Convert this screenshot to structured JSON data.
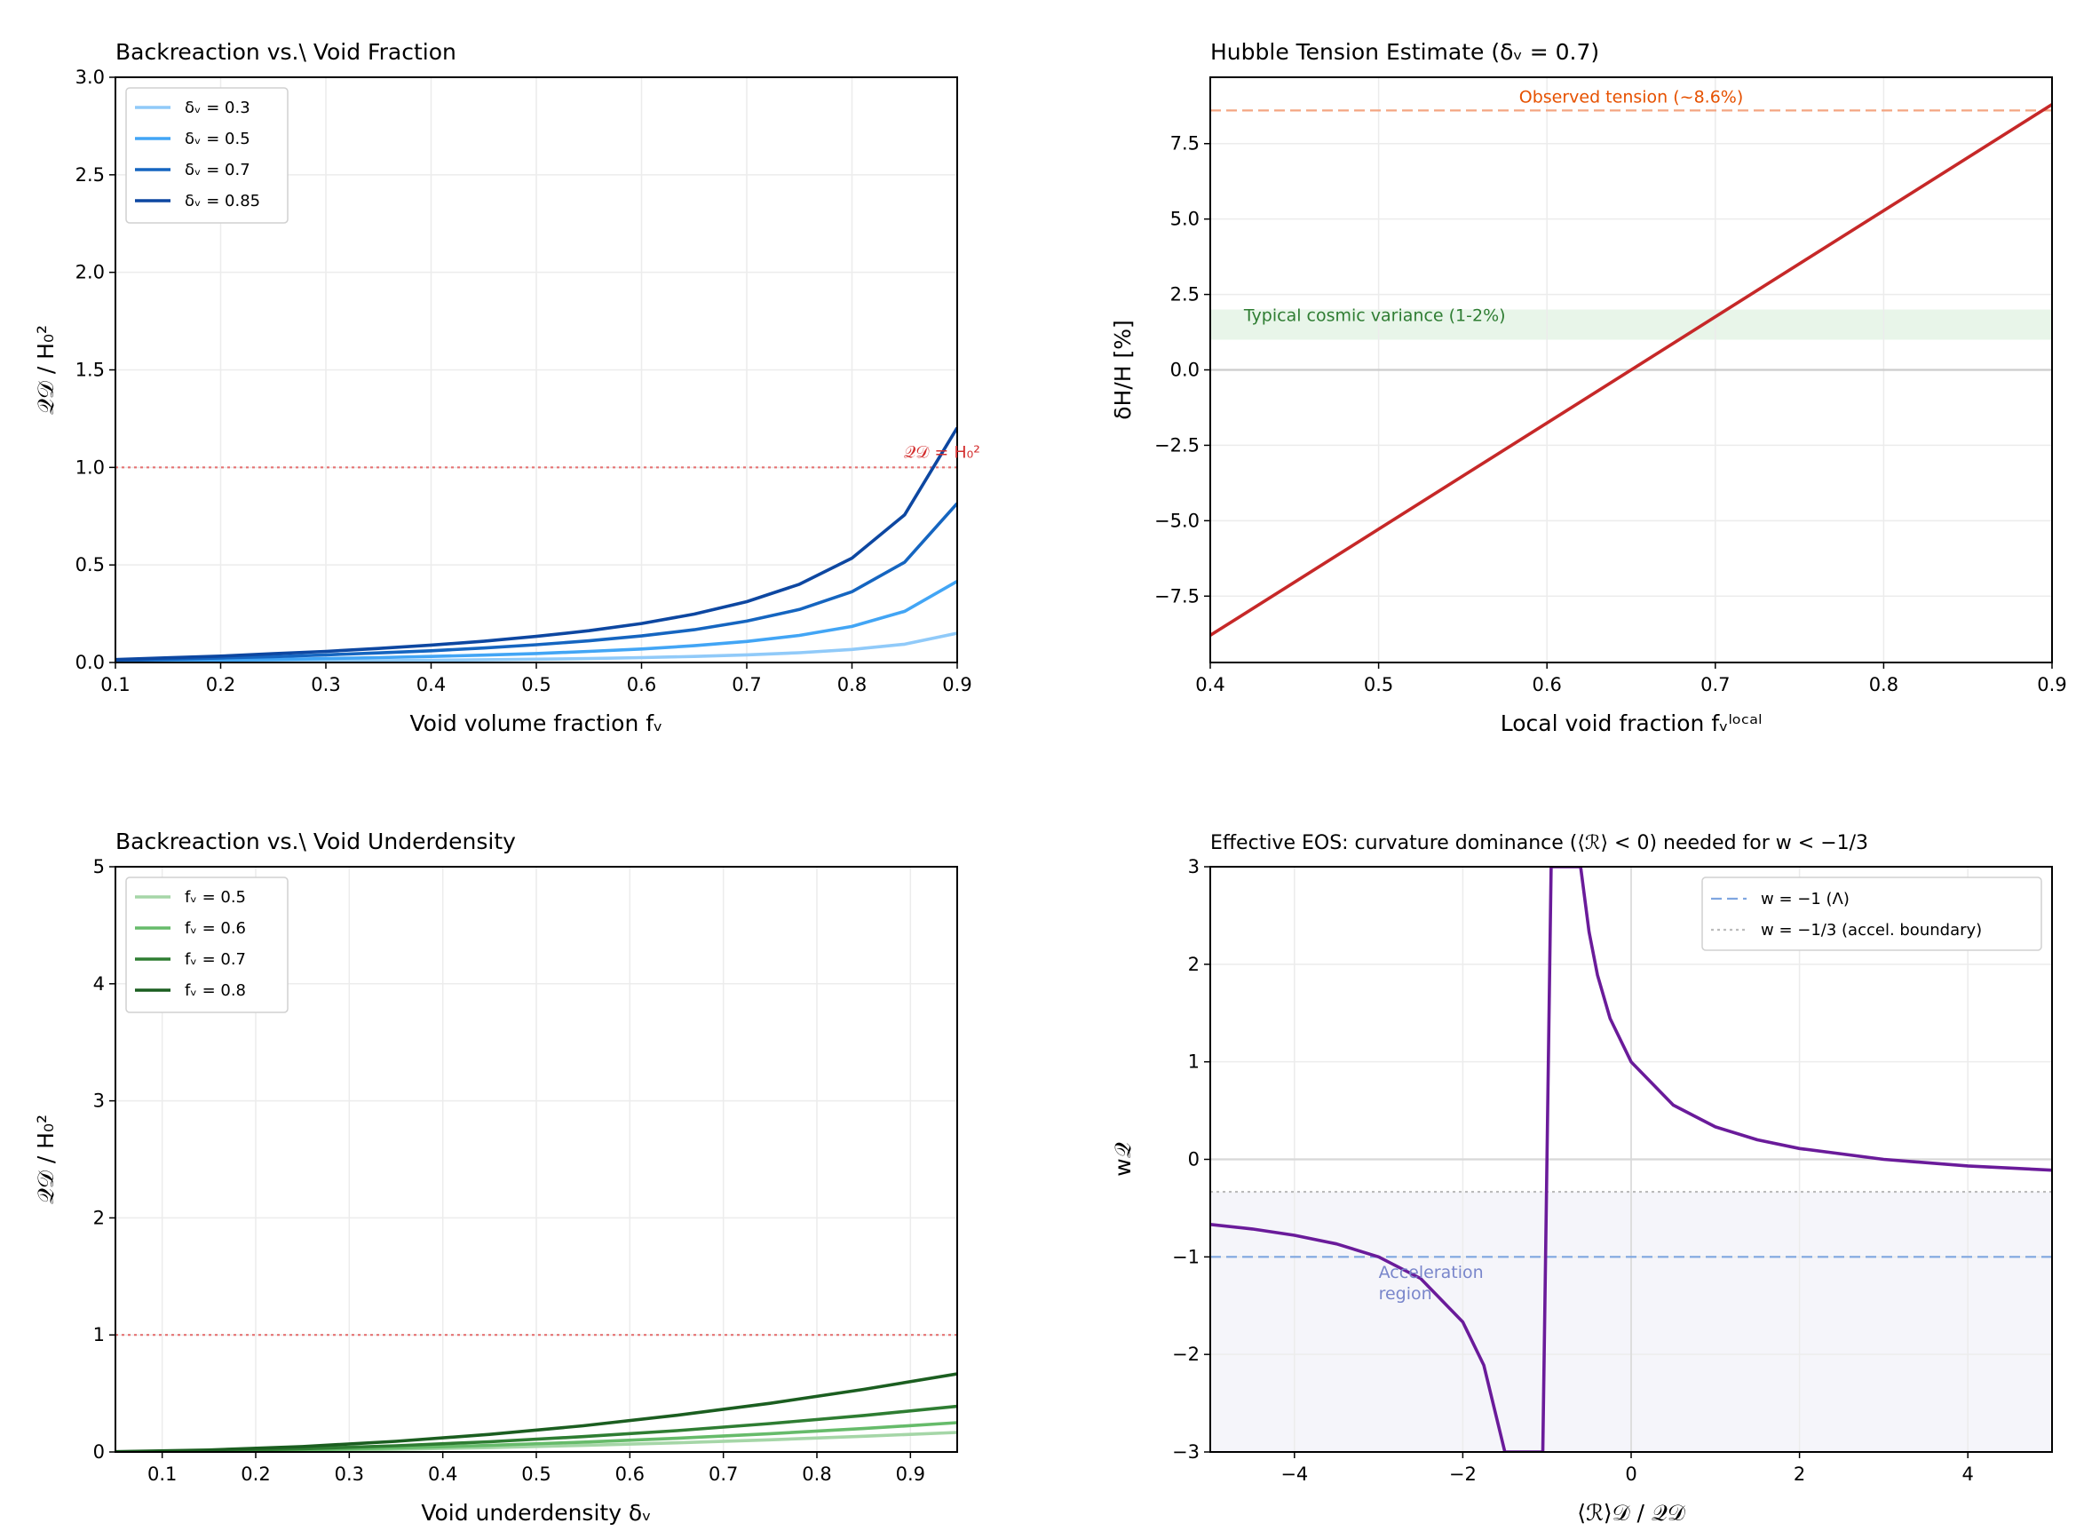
{
  "chart_data": [
    {
      "type": "line",
      "title": "Backreaction vs.\\ Void Fraction",
      "xlabel": "Void volume fraction fᵥ",
      "ylabel": "𝒬𝒟 / H₀²",
      "xlim": [
        0.1,
        0.9
      ],
      "ylim": [
        0,
        3.0
      ],
      "xticks": [
        0.1,
        0.2,
        0.3,
        0.4,
        0.5,
        0.6,
        0.7,
        0.8,
        0.9
      ],
      "xtick_labels": [
        "0.1",
        "0.2",
        "0.3",
        "0.4",
        "0.5",
        "0.6",
        "0.7",
        "0.8",
        "0.9"
      ],
      "yticks": [
        0,
        0.5,
        1.0,
        1.5,
        2.0,
        2.5,
        3.0
      ],
      "ytick_labels": [
        "0.0",
        "0.5",
        "1.0",
        "1.5",
        "2.0",
        "2.5",
        "3.0"
      ],
      "grid": true,
      "legend": "top-left",
      "x": [
        0.1,
        0.15,
        0.2,
        0.25,
        0.3,
        0.35,
        0.4,
        0.45,
        0.5,
        0.55,
        0.6,
        0.65,
        0.7,
        0.75,
        0.8,
        0.85,
        0.9
      ],
      "series": [
        {
          "name": "δᵥ = 0.3",
          "color": "#90caf9",
          "values": [
            0.002,
            0.003,
            0.004,
            0.006,
            0.007,
            0.009,
            0.011,
            0.014,
            0.017,
            0.02,
            0.025,
            0.031,
            0.039,
            0.05,
            0.067,
            0.094,
            0.15
          ]
        },
        {
          "name": "δᵥ = 0.5",
          "color": "#42a5f5",
          "values": [
            0.005,
            0.008,
            0.012,
            0.015,
            0.02,
            0.025,
            0.031,
            0.038,
            0.046,
            0.057,
            0.069,
            0.086,
            0.108,
            0.139,
            0.185,
            0.262,
            0.416
          ]
        },
        {
          "name": "δᵥ = 0.7",
          "color": "#1565c0",
          "values": [
            0.01,
            0.016,
            0.023,
            0.03,
            0.039,
            0.049,
            0.06,
            0.074,
            0.091,
            0.111,
            0.136,
            0.168,
            0.212,
            0.272,
            0.363,
            0.514,
            0.816
          ]
        },
        {
          "name": "δᵥ = 0.85",
          "color": "#0d47a1",
          "values": [
            0.015,
            0.024,
            0.033,
            0.045,
            0.057,
            0.072,
            0.089,
            0.109,
            0.134,
            0.163,
            0.2,
            0.248,
            0.312,
            0.401,
            0.535,
            0.757,
            1.203
          ]
        }
      ],
      "hlines": [
        {
          "y": 1.0,
          "style": "dotted",
          "color": "#e57373"
        }
      ],
      "annotations": [
        {
          "text": "𝒬𝒟 = H₀²",
          "x": 0.849,
          "y": 1.03,
          "color": "#d32f2f"
        }
      ]
    },
    {
      "type": "line",
      "title": "Hubble Tension Estimate (δᵥ = 0.7)",
      "xlabel": "Local void fraction fᵥˡᵒᶜᵃˡ",
      "ylabel": "δH/H [%]",
      "xlim": [
        0.4,
        0.9
      ],
      "ylim": [
        -9.7,
        9.7
      ],
      "xticks": [
        0.4,
        0.5,
        0.6,
        0.7,
        0.8,
        0.9
      ],
      "xtick_labels": [
        "0.4",
        "0.5",
        "0.6",
        "0.7",
        "0.8",
        "0.9"
      ],
      "yticks": [
        -7.5,
        -5.0,
        -2.5,
        0.0,
        2.5,
        5.0,
        7.5
      ],
      "ytick_labels": [
        "−7.5",
        "−5.0",
        "−2.5",
        "0.0",
        "2.5",
        "5.0",
        "7.5"
      ],
      "grid": true,
      "x": [
        0.4,
        0.9
      ],
      "series": [
        {
          "color": "#c62828",
          "values": [
            -8.8,
            8.8
          ]
        }
      ],
      "hlines": [
        {
          "y": 8.6,
          "style": "dashed",
          "color": "#f4a582"
        },
        {
          "y": 0,
          "style": "solid",
          "color": "#cccccc"
        }
      ],
      "bands": [
        {
          "y0": 1,
          "y1": 2,
          "color": "#e8f5e9"
        }
      ],
      "annotations": [
        {
          "text": "Observed tension (~8.6%)",
          "x": 0.65,
          "y": 8.75,
          "color": "#e65100",
          "anchor": "middle"
        },
        {
          "text": "Typical cosmic variance (1-2%)",
          "x": 0.42,
          "y": 1.5,
          "color": "#2e7d32"
        }
      ]
    },
    {
      "type": "line",
      "title": "Backreaction vs.\\ Void Underdensity",
      "xlabel": "Void underdensity δᵥ",
      "ylabel": "𝒬𝒟 / H₀²",
      "xlim": [
        0.05,
        0.95
      ],
      "ylim": [
        0,
        5
      ],
      "xticks": [
        0.1,
        0.2,
        0.3,
        0.4,
        0.5,
        0.6,
        0.7,
        0.8,
        0.9
      ],
      "xtick_labels": [
        "0.1",
        "0.2",
        "0.3",
        "0.4",
        "0.5",
        "0.6",
        "0.7",
        "0.8",
        "0.9"
      ],
      "yticks": [
        0,
        1,
        2,
        3,
        4,
        5
      ],
      "ytick_labels": [
        "0",
        "1",
        "2",
        "3",
        "4",
        "5"
      ],
      "grid": true,
      "legend": "top-left",
      "x": [
        0.05,
        0.15,
        0.25,
        0.35,
        0.45,
        0.55,
        0.65,
        0.75,
        0.85,
        0.95
      ],
      "series": [
        {
          "name": "fᵥ = 0.5",
          "color": "#a5d6a7",
          "values": [
            0.0,
            0.004,
            0.012,
            0.023,
            0.037,
            0.056,
            0.078,
            0.104,
            0.134,
            0.167
          ]
        },
        {
          "name": "fᵥ = 0.6",
          "color": "#66bb6a",
          "values": [
            0.001,
            0.006,
            0.017,
            0.034,
            0.056,
            0.084,
            0.117,
            0.156,
            0.2,
            0.25
          ]
        },
        {
          "name": "fᵥ = 0.7",
          "color": "#2e7d32",
          "values": [
            0.001,
            0.01,
            0.027,
            0.053,
            0.087,
            0.131,
            0.182,
            0.243,
            0.312,
            0.39
          ]
        },
        {
          "name": "fᵥ = 0.8",
          "color": "#1b5e20",
          "values": [
            0.002,
            0.017,
            0.046,
            0.091,
            0.15,
            0.224,
            0.313,
            0.416,
            0.535,
            0.668
          ]
        }
      ],
      "hlines": [
        {
          "y": 1,
          "style": "dotted",
          "color": "#e57373"
        }
      ]
    },
    {
      "type": "line",
      "title": "Effective EOS: curvature dominance (⟨ℛ⟩ < 0) needed for w < −1/3",
      "xlabel": "⟨ℛ⟩𝒟 / 𝒬𝒟",
      "ylabel": "w𝒬",
      "xlim": [
        -5,
        5
      ],
      "ylim": [
        -3,
        3
      ],
      "xticks": [
        -4,
        -2,
        0,
        2,
        4
      ],
      "xtick_labels": [
        "−4",
        "−2",
        "0",
        "2",
        "4"
      ],
      "yticks": [
        -3,
        -2,
        -1,
        0,
        1,
        2,
        3
      ],
      "ytick_labels": [
        "−3",
        "−2",
        "−1",
        "0",
        "1",
        "2",
        "3"
      ],
      "grid": true,
      "legend": "top-right",
      "x": [
        -5,
        -4.5,
        -4,
        -3.5,
        -3,
        -2.5,
        -2,
        -1.75,
        -1.5,
        -1.05,
        -0.95,
        -0.6,
        -0.5,
        -0.4,
        -0.25,
        0,
        0.5,
        1,
        1.5,
        2,
        3,
        4,
        5
      ],
      "series": [
        {
          "color": "#6a1b9a",
          "values": [
            -0.667,
            -0.714,
            -0.778,
            -0.867,
            -1,
            -1.222,
            -1.667,
            -2.111,
            -3,
            -3,
            3,
            3,
            2.333,
            1.889,
            1.444,
            1,
            0.556,
            0.333,
            0.2,
            0.111,
            0,
            -0.067,
            -0.111
          ]
        }
      ],
      "hlines": [
        {
          "y": -1,
          "style": "dashed",
          "color": "#7fa6e0",
          "name": "w = −1 (Λ)"
        },
        {
          "y": -0.333,
          "style": "dotted",
          "color": "#bbbbbb",
          "name": "w = −1/3 (accel. boundary)"
        },
        {
          "y": 0,
          "style": "solid",
          "color": "#d8d8d8"
        }
      ],
      "vlines": [
        {
          "x": 0,
          "color": "#d8d8d8"
        }
      ],
      "bands": [
        {
          "y0": -3,
          "y1": -0.333,
          "color": "#f5f5fa"
        }
      ],
      "annotations": [
        {
          "text": "Acceleration",
          "text2": "region",
          "x": -3,
          "y": -1.25,
          "color": "#7986cb"
        }
      ]
    }
  ]
}
